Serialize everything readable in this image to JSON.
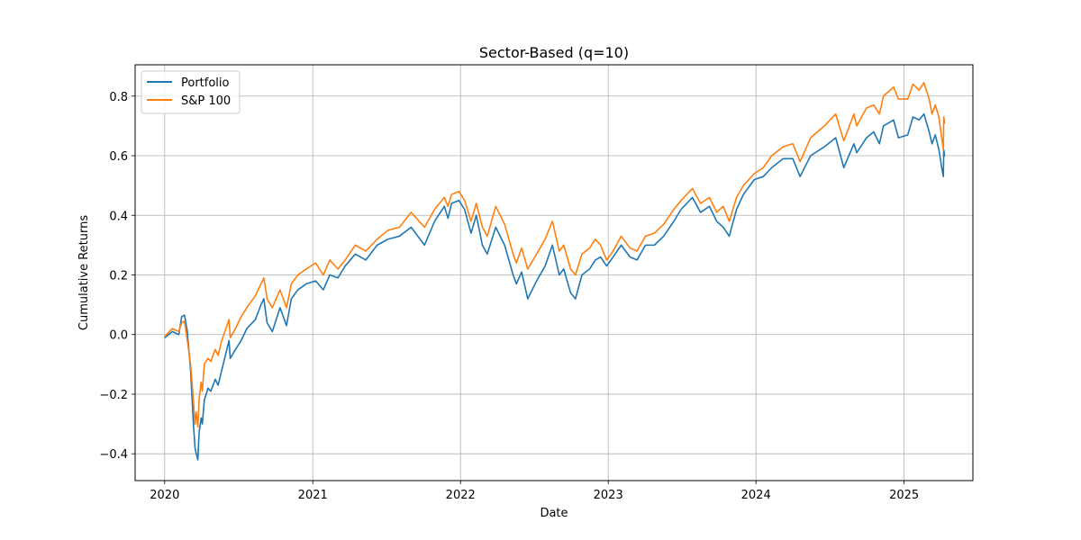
{
  "chart_data": {
    "type": "line",
    "title": "Sector-Based (q=10)",
    "xlabel": "Date",
    "ylabel": "Cumulative Returns",
    "xlim": [
      "2019-10-20",
      "2025-06-20"
    ],
    "ylim": [
      -0.49,
      0.905
    ],
    "x_ticks": [
      {
        "label": "2020",
        "date": "2020-01-01"
      },
      {
        "label": "2021",
        "date": "2021-01-01"
      },
      {
        "label": "2022",
        "date": "2022-01-01"
      },
      {
        "label": "2023",
        "date": "2023-01-01"
      },
      {
        "label": "2024",
        "date": "2024-01-01"
      },
      {
        "label": "2025",
        "date": "2025-01-01"
      }
    ],
    "y_ticks": [
      -0.4,
      -0.2,
      0.0,
      0.2,
      0.4,
      0.6,
      0.8
    ],
    "y_tick_labels": [
      "−0.4",
      "−0.2",
      "0.0",
      "0.2",
      "0.4",
      "0.6",
      "0.8"
    ],
    "grid": true,
    "legend": "upper-left",
    "series": [
      {
        "name": "Portfolio",
        "color": "#1f77b4",
        "points": [
          [
            "2020-01-02",
            -0.01
          ],
          [
            "2020-01-20",
            0.01
          ],
          [
            "2020-02-05",
            0.0
          ],
          [
            "2020-02-12",
            0.06
          ],
          [
            "2020-02-19",
            0.065
          ],
          [
            "2020-02-26",
            0.01
          ],
          [
            "2020-03-05",
            -0.12
          ],
          [
            "2020-03-12",
            -0.3
          ],
          [
            "2020-03-16",
            -0.38
          ],
          [
            "2020-03-19",
            -0.4
          ],
          [
            "2020-03-23",
            -0.42
          ],
          [
            "2020-03-26",
            -0.33
          ],
          [
            "2020-03-31",
            -0.28
          ],
          [
            "2020-04-03",
            -0.3
          ],
          [
            "2020-04-08",
            -0.22
          ],
          [
            "2020-04-17",
            -0.18
          ],
          [
            "2020-04-24",
            -0.19
          ],
          [
            "2020-05-05",
            -0.15
          ],
          [
            "2020-05-12",
            -0.17
          ],
          [
            "2020-05-21",
            -0.12
          ],
          [
            "2020-06-08",
            -0.02
          ],
          [
            "2020-06-11",
            -0.08
          ],
          [
            "2020-06-24",
            -0.05
          ],
          [
            "2020-07-08",
            -0.02
          ],
          [
            "2020-07-22",
            0.02
          ],
          [
            "2020-08-12",
            0.05
          ],
          [
            "2020-08-26",
            0.1
          ],
          [
            "2020-09-02",
            0.12
          ],
          [
            "2020-09-10",
            0.04
          ],
          [
            "2020-09-23",
            0.01
          ],
          [
            "2020-10-12",
            0.09
          ],
          [
            "2020-10-28",
            0.03
          ],
          [
            "2020-11-09",
            0.12
          ],
          [
            "2020-11-25",
            0.15
          ],
          [
            "2020-12-16",
            0.17
          ],
          [
            "2021-01-08",
            0.18
          ],
          [
            "2021-01-27",
            0.15
          ],
          [
            "2021-02-12",
            0.2
          ],
          [
            "2021-03-04",
            0.19
          ],
          [
            "2021-03-22",
            0.23
          ],
          [
            "2021-04-16",
            0.27
          ],
          [
            "2021-05-12",
            0.25
          ],
          [
            "2021-06-09",
            0.3
          ],
          [
            "2021-07-06",
            0.32
          ],
          [
            "2021-08-03",
            0.33
          ],
          [
            "2021-09-01",
            0.36
          ],
          [
            "2021-10-04",
            0.3
          ],
          [
            "2021-10-29",
            0.38
          ],
          [
            "2021-11-22",
            0.43
          ],
          [
            "2021-12-01",
            0.39
          ],
          [
            "2021-12-10",
            0.44
          ],
          [
            "2021-12-28",
            0.45
          ],
          [
            "2022-01-11",
            0.42
          ],
          [
            "2022-01-27",
            0.34
          ],
          [
            "2022-02-09",
            0.4
          ],
          [
            "2022-02-24",
            0.3
          ],
          [
            "2022-03-08",
            0.27
          ],
          [
            "2022-03-29",
            0.36
          ],
          [
            "2022-04-20",
            0.3
          ],
          [
            "2022-05-11",
            0.2
          ],
          [
            "2022-05-19",
            0.17
          ],
          [
            "2022-06-01",
            0.21
          ],
          [
            "2022-06-16",
            0.12
          ],
          [
            "2022-07-08",
            0.18
          ],
          [
            "2022-07-29",
            0.23
          ],
          [
            "2022-08-16",
            0.3
          ],
          [
            "2022-09-02",
            0.2
          ],
          [
            "2022-09-13",
            0.22
          ],
          [
            "2022-09-30",
            0.14
          ],
          [
            "2022-10-12",
            0.12
          ],
          [
            "2022-10-28",
            0.2
          ],
          [
            "2022-11-16",
            0.22
          ],
          [
            "2022-11-30",
            0.25
          ],
          [
            "2022-12-13",
            0.26
          ],
          [
            "2022-12-28",
            0.23
          ],
          [
            "2023-01-13",
            0.26
          ],
          [
            "2023-02-02",
            0.3
          ],
          [
            "2023-02-24",
            0.26
          ],
          [
            "2023-03-13",
            0.25
          ],
          [
            "2023-04-03",
            0.3
          ],
          [
            "2023-04-25",
            0.3
          ],
          [
            "2023-05-18",
            0.33
          ],
          [
            "2023-06-12",
            0.38
          ],
          [
            "2023-06-30",
            0.42
          ],
          [
            "2023-07-28",
            0.46
          ],
          [
            "2023-08-17",
            0.41
          ],
          [
            "2023-09-08",
            0.43
          ],
          [
            "2023-09-26",
            0.38
          ],
          [
            "2023-10-12",
            0.36
          ],
          [
            "2023-10-27",
            0.33
          ],
          [
            "2023-11-14",
            0.42
          ],
          [
            "2023-12-01",
            0.47
          ],
          [
            "2023-12-28",
            0.52
          ],
          [
            "2024-01-19",
            0.53
          ],
          [
            "2024-02-09",
            0.56
          ],
          [
            "2024-03-08",
            0.59
          ],
          [
            "2024-04-01",
            0.59
          ],
          [
            "2024-04-19",
            0.53
          ],
          [
            "2024-05-15",
            0.6
          ],
          [
            "2024-06-18",
            0.63
          ],
          [
            "2024-07-16",
            0.66
          ],
          [
            "2024-08-05",
            0.56
          ],
          [
            "2024-08-30",
            0.64
          ],
          [
            "2024-09-06",
            0.61
          ],
          [
            "2024-09-30",
            0.66
          ],
          [
            "2024-10-18",
            0.68
          ],
          [
            "2024-11-01",
            0.64
          ],
          [
            "2024-11-11",
            0.7
          ],
          [
            "2024-12-06",
            0.72
          ],
          [
            "2024-12-18",
            0.66
          ],
          [
            "2025-01-10",
            0.67
          ],
          [
            "2025-01-23",
            0.73
          ],
          [
            "2025-02-07",
            0.72
          ],
          [
            "2025-02-19",
            0.74
          ],
          [
            "2025-03-04",
            0.68
          ],
          [
            "2025-03-11",
            0.64
          ],
          [
            "2025-03-19",
            0.67
          ],
          [
            "2025-03-28",
            0.62
          ],
          [
            "2025-04-04",
            0.56
          ],
          [
            "2025-04-08",
            0.53
          ],
          [
            "2025-04-09",
            0.62
          ],
          [
            "2025-04-11",
            0.6
          ]
        ]
      },
      {
        "name": "S&P 100",
        "color": "#ff7f0e",
        "points": [
          [
            "2020-01-02",
            -0.005
          ],
          [
            "2020-01-20",
            0.02
          ],
          [
            "2020-02-05",
            0.01
          ],
          [
            "2020-02-12",
            0.04
          ],
          [
            "2020-02-19",
            0.045
          ],
          [
            "2020-02-26",
            -0.02
          ],
          [
            "2020-03-05",
            -0.1
          ],
          [
            "2020-03-12",
            -0.22
          ],
          [
            "2020-03-16",
            -0.3
          ],
          [
            "2020-03-19",
            -0.26
          ],
          [
            "2020-03-23",
            -0.31
          ],
          [
            "2020-03-26",
            -0.22
          ],
          [
            "2020-03-31",
            -0.16
          ],
          [
            "2020-04-03",
            -0.19
          ],
          [
            "2020-04-08",
            -0.1
          ],
          [
            "2020-04-17",
            -0.08
          ],
          [
            "2020-04-24",
            -0.09
          ],
          [
            "2020-05-05",
            -0.05
          ],
          [
            "2020-05-12",
            -0.07
          ],
          [
            "2020-05-21",
            -0.02
          ],
          [
            "2020-06-08",
            0.05
          ],
          [
            "2020-06-11",
            -0.01
          ],
          [
            "2020-06-24",
            0.02
          ],
          [
            "2020-07-08",
            0.06
          ],
          [
            "2020-07-22",
            0.09
          ],
          [
            "2020-08-12",
            0.13
          ],
          [
            "2020-08-26",
            0.17
          ],
          [
            "2020-09-02",
            0.19
          ],
          [
            "2020-09-10",
            0.12
          ],
          [
            "2020-09-23",
            0.09
          ],
          [
            "2020-10-12",
            0.15
          ],
          [
            "2020-10-28",
            0.09
          ],
          [
            "2020-11-09",
            0.17
          ],
          [
            "2020-11-25",
            0.2
          ],
          [
            "2020-12-16",
            0.22
          ],
          [
            "2021-01-08",
            0.24
          ],
          [
            "2021-01-27",
            0.2
          ],
          [
            "2021-02-12",
            0.25
          ],
          [
            "2021-03-04",
            0.22
          ],
          [
            "2021-03-22",
            0.25
          ],
          [
            "2021-04-16",
            0.3
          ],
          [
            "2021-05-12",
            0.28
          ],
          [
            "2021-06-09",
            0.32
          ],
          [
            "2021-07-06",
            0.35
          ],
          [
            "2021-08-03",
            0.36
          ],
          [
            "2021-09-01",
            0.41
          ],
          [
            "2021-10-04",
            0.36
          ],
          [
            "2021-10-29",
            0.42
          ],
          [
            "2021-11-22",
            0.46
          ],
          [
            "2021-12-01",
            0.43
          ],
          [
            "2021-12-10",
            0.47
          ],
          [
            "2021-12-28",
            0.48
          ],
          [
            "2022-01-11",
            0.45
          ],
          [
            "2022-01-27",
            0.38
          ],
          [
            "2022-02-09",
            0.44
          ],
          [
            "2022-02-24",
            0.36
          ],
          [
            "2022-03-08",
            0.33
          ],
          [
            "2022-03-29",
            0.43
          ],
          [
            "2022-04-20",
            0.37
          ],
          [
            "2022-05-11",
            0.27
          ],
          [
            "2022-05-19",
            0.24
          ],
          [
            "2022-06-01",
            0.29
          ],
          [
            "2022-06-16",
            0.22
          ],
          [
            "2022-07-08",
            0.27
          ],
          [
            "2022-07-29",
            0.32
          ],
          [
            "2022-08-16",
            0.38
          ],
          [
            "2022-09-02",
            0.28
          ],
          [
            "2022-09-13",
            0.3
          ],
          [
            "2022-09-30",
            0.22
          ],
          [
            "2022-10-12",
            0.2
          ],
          [
            "2022-10-28",
            0.27
          ],
          [
            "2022-11-16",
            0.29
          ],
          [
            "2022-11-30",
            0.32
          ],
          [
            "2022-12-13",
            0.3
          ],
          [
            "2022-12-28",
            0.25
          ],
          [
            "2023-01-13",
            0.28
          ],
          [
            "2023-02-02",
            0.33
          ],
          [
            "2023-02-24",
            0.29
          ],
          [
            "2023-03-13",
            0.28
          ],
          [
            "2023-04-03",
            0.33
          ],
          [
            "2023-04-25",
            0.34
          ],
          [
            "2023-05-18",
            0.37
          ],
          [
            "2023-06-12",
            0.42
          ],
          [
            "2023-06-30",
            0.45
          ],
          [
            "2023-07-28",
            0.49
          ],
          [
            "2023-08-17",
            0.44
          ],
          [
            "2023-09-08",
            0.46
          ],
          [
            "2023-09-26",
            0.41
          ],
          [
            "2023-10-12",
            0.43
          ],
          [
            "2023-10-27",
            0.38
          ],
          [
            "2023-11-14",
            0.46
          ],
          [
            "2023-12-01",
            0.5
          ],
          [
            "2023-12-28",
            0.54
          ],
          [
            "2024-01-19",
            0.56
          ],
          [
            "2024-02-09",
            0.6
          ],
          [
            "2024-03-08",
            0.63
          ],
          [
            "2024-04-01",
            0.64
          ],
          [
            "2024-04-19",
            0.58
          ],
          [
            "2024-05-15",
            0.66
          ],
          [
            "2024-06-18",
            0.7
          ],
          [
            "2024-07-16",
            0.74
          ],
          [
            "2024-08-05",
            0.65
          ],
          [
            "2024-08-30",
            0.74
          ],
          [
            "2024-09-06",
            0.7
          ],
          [
            "2024-09-30",
            0.76
          ],
          [
            "2024-10-18",
            0.77
          ],
          [
            "2024-11-01",
            0.74
          ],
          [
            "2024-11-11",
            0.8
          ],
          [
            "2024-12-06",
            0.83
          ],
          [
            "2024-12-18",
            0.79
          ],
          [
            "2025-01-10",
            0.79
          ],
          [
            "2025-01-23",
            0.84
          ],
          [
            "2025-02-07",
            0.82
          ],
          [
            "2025-02-19",
            0.845
          ],
          [
            "2025-03-04",
            0.79
          ],
          [
            "2025-03-11",
            0.74
          ],
          [
            "2025-03-19",
            0.77
          ],
          [
            "2025-03-28",
            0.73
          ],
          [
            "2025-04-04",
            0.66
          ],
          [
            "2025-04-08",
            0.62
          ],
          [
            "2025-04-09",
            0.73
          ],
          [
            "2025-04-11",
            0.71
          ]
        ]
      }
    ]
  }
}
